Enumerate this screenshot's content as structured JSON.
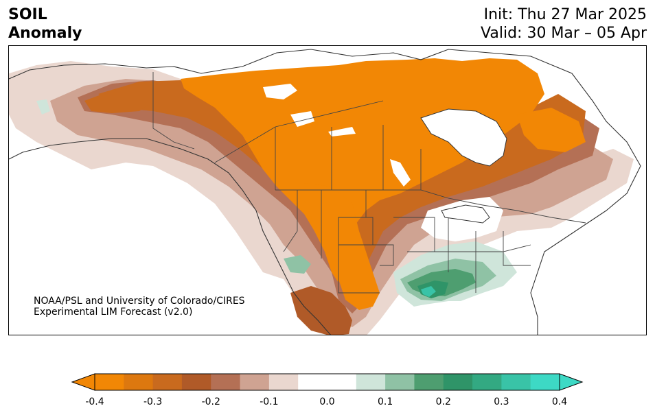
{
  "title": {
    "line1": "SOIL",
    "line2": "Anomaly"
  },
  "dates": {
    "init": "Init: Thu 27 Mar 2025",
    "valid": "Valid: 30 Mar – 05 Apr"
  },
  "credit": {
    "line1": "NOAA/PSL and University of Colorado/CIRES",
    "line2": "Experimental LIM Forecast (v2.0)"
  },
  "colorbar": {
    "ticks": [
      "-0.4",
      "-0.3",
      "-0.2",
      "-0.1",
      "0.0",
      "0.1",
      "0.2",
      "0.3",
      "0.4"
    ],
    "bins": [
      {
        "color": "#f28705"
      },
      {
        "color": "#dd780f"
      },
      {
        "color": "#c96a1e"
      },
      {
        "color": "#b05a28"
      },
      {
        "color": "#b47055"
      },
      {
        "color": "#cfa392"
      },
      {
        "color": "#ead7cf"
      },
      {
        "color": "#ffffff"
      },
      {
        "color": "#ffffff"
      },
      {
        "color": "#cfe5da"
      },
      {
        "color": "#8fc2a5"
      },
      {
        "color": "#4e9e70"
      },
      {
        "color": "#2f9468"
      },
      {
        "color": "#33a982"
      },
      {
        "color": "#39c3a7"
      },
      {
        "color": "#3dd9c5"
      }
    ],
    "min_color": "#f28705",
    "max_color": "#3dd9c5"
  }
}
